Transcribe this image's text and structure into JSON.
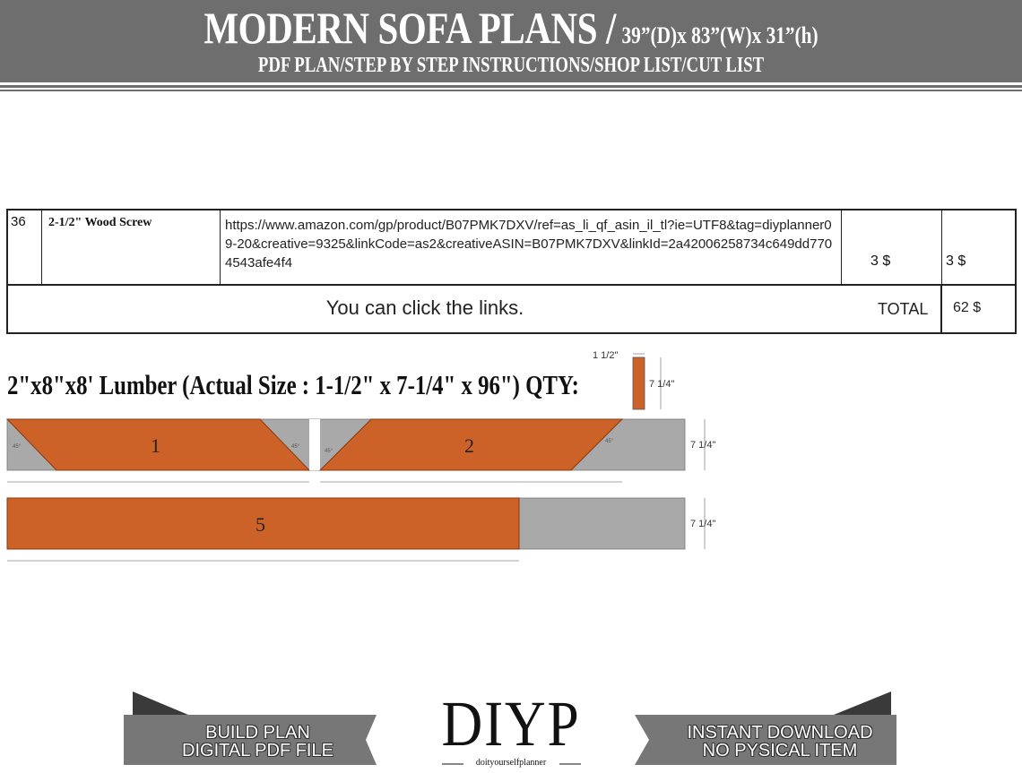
{
  "header": {
    "title": "MODERN SOFA PLANS /",
    "dimensions": "39”(D)x 83”(W)x 31”(h)",
    "subtitle": "PDF PLAN/STEP BY STEP INSTRUCTIONS/SHOP LIST/CUT LIST"
  },
  "shop_table": {
    "row": {
      "number": "36",
      "item": "2-1/2\" Wood Screw",
      "link": "https://www.amazon.com/gp/product/B07PMK7DXV/ref=as_li_qf_asin_il_tl?ie=UTF8&tag=diyplanner09-20&creative=9325&linkCode=as2&creativeASIN=B07PMK7DXV&linkId=2a42006258734c649dd7704543afe4f4",
      "unit_price": "3 $",
      "total": "3 $"
    },
    "note": "You can click the links.",
    "total_label": "TOTAL",
    "total_value": "62 $"
  },
  "lumber": {
    "title": "2\"x8\"x8' Lumber (Actual Size : 1-1/2\" x 7-1/4\" x 96\") QTY:",
    "section_width": "1 1/2\"",
    "section_height": "7 1/4\"",
    "board_height": "7 1/4\"",
    "pieces": [
      "1",
      "2",
      "5"
    ],
    "angle": "45°",
    "colors": {
      "piece": "#cc6228",
      "board": "#a9a9a9"
    }
  },
  "footer": {
    "left_banner": [
      "BUILD PLAN",
      "DIGITAL PDF FILE"
    ],
    "logo": "DIYP",
    "logo_sub": "doityourselfplanner",
    "right_banner": [
      "INSTANT DOWNLOAD",
      "NO PYSICAL ITEM"
    ]
  }
}
